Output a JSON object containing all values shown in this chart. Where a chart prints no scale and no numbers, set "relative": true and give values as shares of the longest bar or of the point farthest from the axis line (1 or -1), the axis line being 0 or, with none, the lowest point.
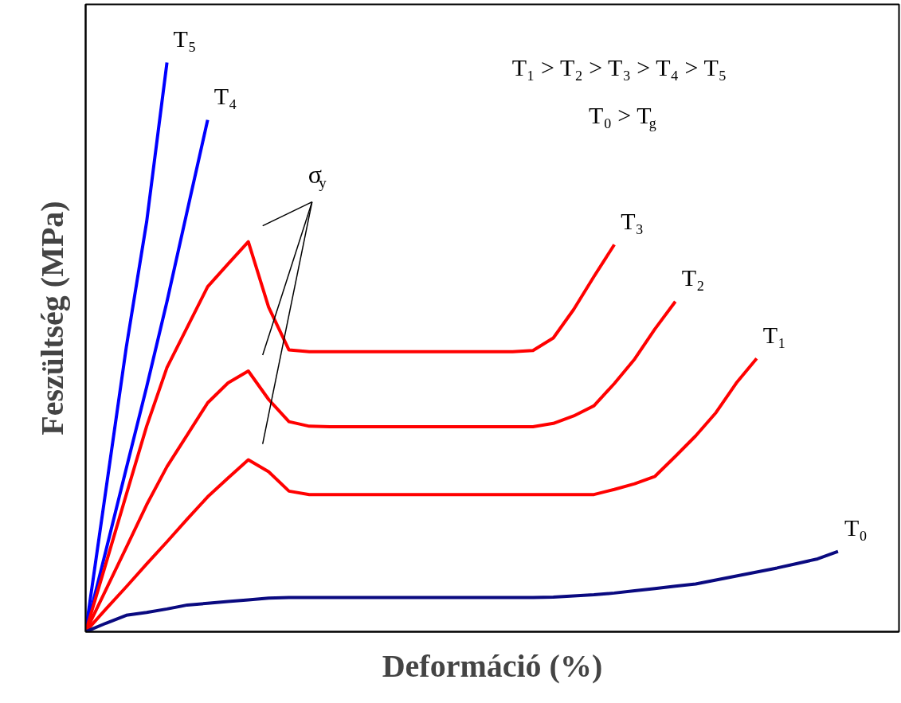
{
  "chart_data": {
    "type": "line",
    "relative": true,
    "xlabel": "Deformáció (%)",
    "ylabel": "Feszültség (MPa)",
    "line_style": "solid",
    "categories": [
      null,
      null,
      null,
      null,
      null,
      null,
      null,
      null,
      null,
      null,
      null,
      null,
      null,
      null,
      null,
      null,
      null,
      null,
      null,
      null,
      null,
      null,
      null,
      null,
      null,
      null,
      null,
      null,
      null,
      null,
      null,
      null,
      null,
      null,
      null,
      null,
      null,
      null,
      null,
      null,
      null
    ],
    "series": [
      {
        "name": "T₅",
        "color": "#0000ff",
        "values": [
          0,
          0.25,
          0.5,
          0.72,
          1.0,
          null,
          null,
          null,
          null,
          null,
          null,
          null,
          null,
          null,
          null,
          null,
          null,
          null,
          null,
          null,
          null,
          null,
          null,
          null,
          null,
          null,
          null,
          null,
          null,
          null,
          null,
          null,
          null,
          null,
          null,
          null,
          null,
          null,
          null,
          null,
          null
        ]
      },
      {
        "name": "T₄",
        "color": "#0000ff",
        "values": [
          0,
          0.143,
          0.287,
          0.43,
          0.58,
          0.74,
          0.899,
          null,
          null,
          null,
          null,
          null,
          null,
          null,
          null,
          null,
          null,
          null,
          null,
          null,
          null,
          null,
          null,
          null,
          null,
          null,
          null,
          null,
          null,
          null,
          null,
          null,
          null,
          null,
          null,
          null,
          null,
          null,
          null,
          null,
          null
        ]
      },
      {
        "name": "T₃",
        "color": "#ff0000",
        "values": [
          0,
          0.12,
          0.241,
          0.361,
          0.464,
          0.535,
          0.606,
          0.646,
          0.685,
          0.57,
          0.495,
          0.492,
          0.492,
          0.492,
          0.492,
          0.492,
          0.492,
          0.492,
          0.492,
          0.492,
          0.492,
          0.492,
          0.494,
          0.516,
          0.566,
          0.624,
          0.68,
          null,
          null,
          null,
          null,
          null,
          null,
          null,
          null,
          null,
          null,
          null,
          null,
          null,
          null
        ]
      },
      {
        "name": "T₂",
        "color": "#ff0000",
        "values": [
          0,
          0.074,
          0.148,
          0.223,
          0.29,
          0.346,
          0.402,
          0.437,
          0.458,
          0.408,
          0.369,
          0.361,
          0.36,
          0.36,
          0.36,
          0.36,
          0.36,
          0.36,
          0.36,
          0.36,
          0.36,
          0.36,
          0.36,
          0.366,
          0.379,
          0.397,
          0.436,
          0.479,
          0.532,
          0.58,
          null,
          null,
          null,
          null,
          null,
          null,
          null,
          null,
          null,
          null,
          null
        ]
      },
      {
        "name": "T₁",
        "color": "#ff0000",
        "values": [
          0,
          0.04,
          0.079,
          0.119,
          0.158,
          0.198,
          0.237,
          0.27,
          0.302,
          0.281,
          0.247,
          0.241,
          0.241,
          0.241,
          0.241,
          0.241,
          0.241,
          0.241,
          0.241,
          0.241,
          0.241,
          0.241,
          0.241,
          0.241,
          0.241,
          0.241,
          0.25,
          0.26,
          0.273,
          0.308,
          0.344,
          0.385,
          0.437,
          0.48,
          null,
          null,
          null,
          null,
          null,
          null,
          null
        ]
      },
      {
        "name": "T₀",
        "color": "#0a0a80",
        "values": [
          0,
          0.015,
          0.029,
          0.034,
          0.04,
          0.047,
          0.05,
          0.053,
          0.056,
          0.059,
          0.06,
          0.06,
          0.06,
          0.06,
          0.06,
          0.06,
          0.06,
          0.06,
          0.06,
          0.06,
          0.06,
          0.06,
          0.06,
          0.061,
          0.063,
          0.065,
          0.068,
          0.072,
          0.076,
          0.08,
          0.084,
          0.091,
          0.098,
          0.105,
          0.112,
          0.12,
          0.128,
          0.141,
          null,
          null,
          null
        ]
      }
    ],
    "annotations": [
      "σ$_{y}$",
      "T₁ > T₂ > T₃ > T₄ > T₅",
      "T₀ > T$_{g}$"
    ]
  }
}
